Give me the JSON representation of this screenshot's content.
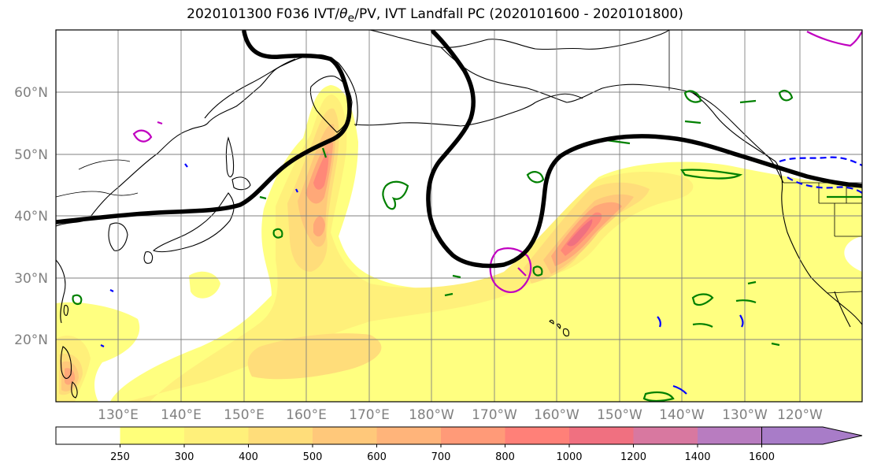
{
  "figure": {
    "title_main": "2020101300 F036 IVT/",
    "title_theta": "θ",
    "title_sub": "e",
    "title_rest": "/PV, IVT Landfall PC (2020101600 - 2020101800)"
  },
  "map": {
    "lat_labels": [
      "60°N",
      "50°N",
      "40°N",
      "30°N",
      "20°N"
    ],
    "lon_labels": [
      "130°E",
      "140°E",
      "150°E",
      "160°E",
      "170°E",
      "180°W",
      "170°W",
      "160°W",
      "150°W",
      "140°W",
      "130°W",
      "120°W"
    ],
    "land_color": "#ffffff",
    "grid": true
  },
  "colorbar": {
    "levels": [
      "250",
      "300",
      "400",
      "500",
      "600",
      "700",
      "800",
      "1000",
      "1200",
      "1400",
      "1600"
    ],
    "colors": [
      "#ffffff",
      "#ffff7a",
      "#fff07a",
      "#ffdd7a",
      "#ffc87a",
      "#ffb47a",
      "#ff9a78",
      "#ff8078",
      "#f07080",
      "#d878a0",
      "#b87cc0",
      "#a87cc8"
    ],
    "extend": "max"
  },
  "overlay_colors": {
    "jet_contour": "#000000",
    "theta_contour": "#008000",
    "pv_negative": "#0000ff",
    "pv_positive": "#c000c0"
  }
}
